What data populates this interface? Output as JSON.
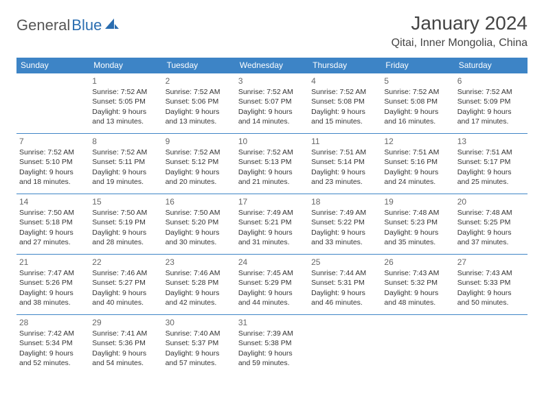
{
  "logo": {
    "text1": "General",
    "text2": "Blue",
    "icon_color": "#2a6db0"
  },
  "header": {
    "title": "January 2024",
    "location": "Qitai, Inner Mongolia, China"
  },
  "style": {
    "header_bg": "#3d84c6",
    "header_text_color": "#ffffff",
    "border_color": "#3d84c6",
    "body_bg": "#ffffff",
    "text_color": "#333333",
    "daynum_color": "#666666",
    "title_fontsize": 28,
    "location_fontsize": 16,
    "dayheader_fontsize": 12,
    "cell_fontsize": 10.5
  },
  "day_headers": [
    "Sunday",
    "Monday",
    "Tuesday",
    "Wednesday",
    "Thursday",
    "Friday",
    "Saturday"
  ],
  "weeks": [
    [
      null,
      {
        "n": "1",
        "sr": "7:52 AM",
        "ss": "5:05 PM",
        "dl": "9 hours and 13 minutes."
      },
      {
        "n": "2",
        "sr": "7:52 AM",
        "ss": "5:06 PM",
        "dl": "9 hours and 13 minutes."
      },
      {
        "n": "3",
        "sr": "7:52 AM",
        "ss": "5:07 PM",
        "dl": "9 hours and 14 minutes."
      },
      {
        "n": "4",
        "sr": "7:52 AM",
        "ss": "5:08 PM",
        "dl": "9 hours and 15 minutes."
      },
      {
        "n": "5",
        "sr": "7:52 AM",
        "ss": "5:08 PM",
        "dl": "9 hours and 16 minutes."
      },
      {
        "n": "6",
        "sr": "7:52 AM",
        "ss": "5:09 PM",
        "dl": "9 hours and 17 minutes."
      }
    ],
    [
      {
        "n": "7",
        "sr": "7:52 AM",
        "ss": "5:10 PM",
        "dl": "9 hours and 18 minutes."
      },
      {
        "n": "8",
        "sr": "7:52 AM",
        "ss": "5:11 PM",
        "dl": "9 hours and 19 minutes."
      },
      {
        "n": "9",
        "sr": "7:52 AM",
        "ss": "5:12 PM",
        "dl": "9 hours and 20 minutes."
      },
      {
        "n": "10",
        "sr": "7:52 AM",
        "ss": "5:13 PM",
        "dl": "9 hours and 21 minutes."
      },
      {
        "n": "11",
        "sr": "7:51 AM",
        "ss": "5:14 PM",
        "dl": "9 hours and 23 minutes."
      },
      {
        "n": "12",
        "sr": "7:51 AM",
        "ss": "5:16 PM",
        "dl": "9 hours and 24 minutes."
      },
      {
        "n": "13",
        "sr": "7:51 AM",
        "ss": "5:17 PM",
        "dl": "9 hours and 25 minutes."
      }
    ],
    [
      {
        "n": "14",
        "sr": "7:50 AM",
        "ss": "5:18 PM",
        "dl": "9 hours and 27 minutes."
      },
      {
        "n": "15",
        "sr": "7:50 AM",
        "ss": "5:19 PM",
        "dl": "9 hours and 28 minutes."
      },
      {
        "n": "16",
        "sr": "7:50 AM",
        "ss": "5:20 PM",
        "dl": "9 hours and 30 minutes."
      },
      {
        "n": "17",
        "sr": "7:49 AM",
        "ss": "5:21 PM",
        "dl": "9 hours and 31 minutes."
      },
      {
        "n": "18",
        "sr": "7:49 AM",
        "ss": "5:22 PM",
        "dl": "9 hours and 33 minutes."
      },
      {
        "n": "19",
        "sr": "7:48 AM",
        "ss": "5:23 PM",
        "dl": "9 hours and 35 minutes."
      },
      {
        "n": "20",
        "sr": "7:48 AM",
        "ss": "5:25 PM",
        "dl": "9 hours and 37 minutes."
      }
    ],
    [
      {
        "n": "21",
        "sr": "7:47 AM",
        "ss": "5:26 PM",
        "dl": "9 hours and 38 minutes."
      },
      {
        "n": "22",
        "sr": "7:46 AM",
        "ss": "5:27 PM",
        "dl": "9 hours and 40 minutes."
      },
      {
        "n": "23",
        "sr": "7:46 AM",
        "ss": "5:28 PM",
        "dl": "9 hours and 42 minutes."
      },
      {
        "n": "24",
        "sr": "7:45 AM",
        "ss": "5:29 PM",
        "dl": "9 hours and 44 minutes."
      },
      {
        "n": "25",
        "sr": "7:44 AM",
        "ss": "5:31 PM",
        "dl": "9 hours and 46 minutes."
      },
      {
        "n": "26",
        "sr": "7:43 AM",
        "ss": "5:32 PM",
        "dl": "9 hours and 48 minutes."
      },
      {
        "n": "27",
        "sr": "7:43 AM",
        "ss": "5:33 PM",
        "dl": "9 hours and 50 minutes."
      }
    ],
    [
      {
        "n": "28",
        "sr": "7:42 AM",
        "ss": "5:34 PM",
        "dl": "9 hours and 52 minutes."
      },
      {
        "n": "29",
        "sr": "7:41 AM",
        "ss": "5:36 PM",
        "dl": "9 hours and 54 minutes."
      },
      {
        "n": "30",
        "sr": "7:40 AM",
        "ss": "5:37 PM",
        "dl": "9 hours and 57 minutes."
      },
      {
        "n": "31",
        "sr": "7:39 AM",
        "ss": "5:38 PM",
        "dl": "9 hours and 59 minutes."
      },
      null,
      null,
      null
    ]
  ],
  "labels": {
    "sunrise": "Sunrise: ",
    "sunset": "Sunset: ",
    "daylight": "Daylight: "
  }
}
